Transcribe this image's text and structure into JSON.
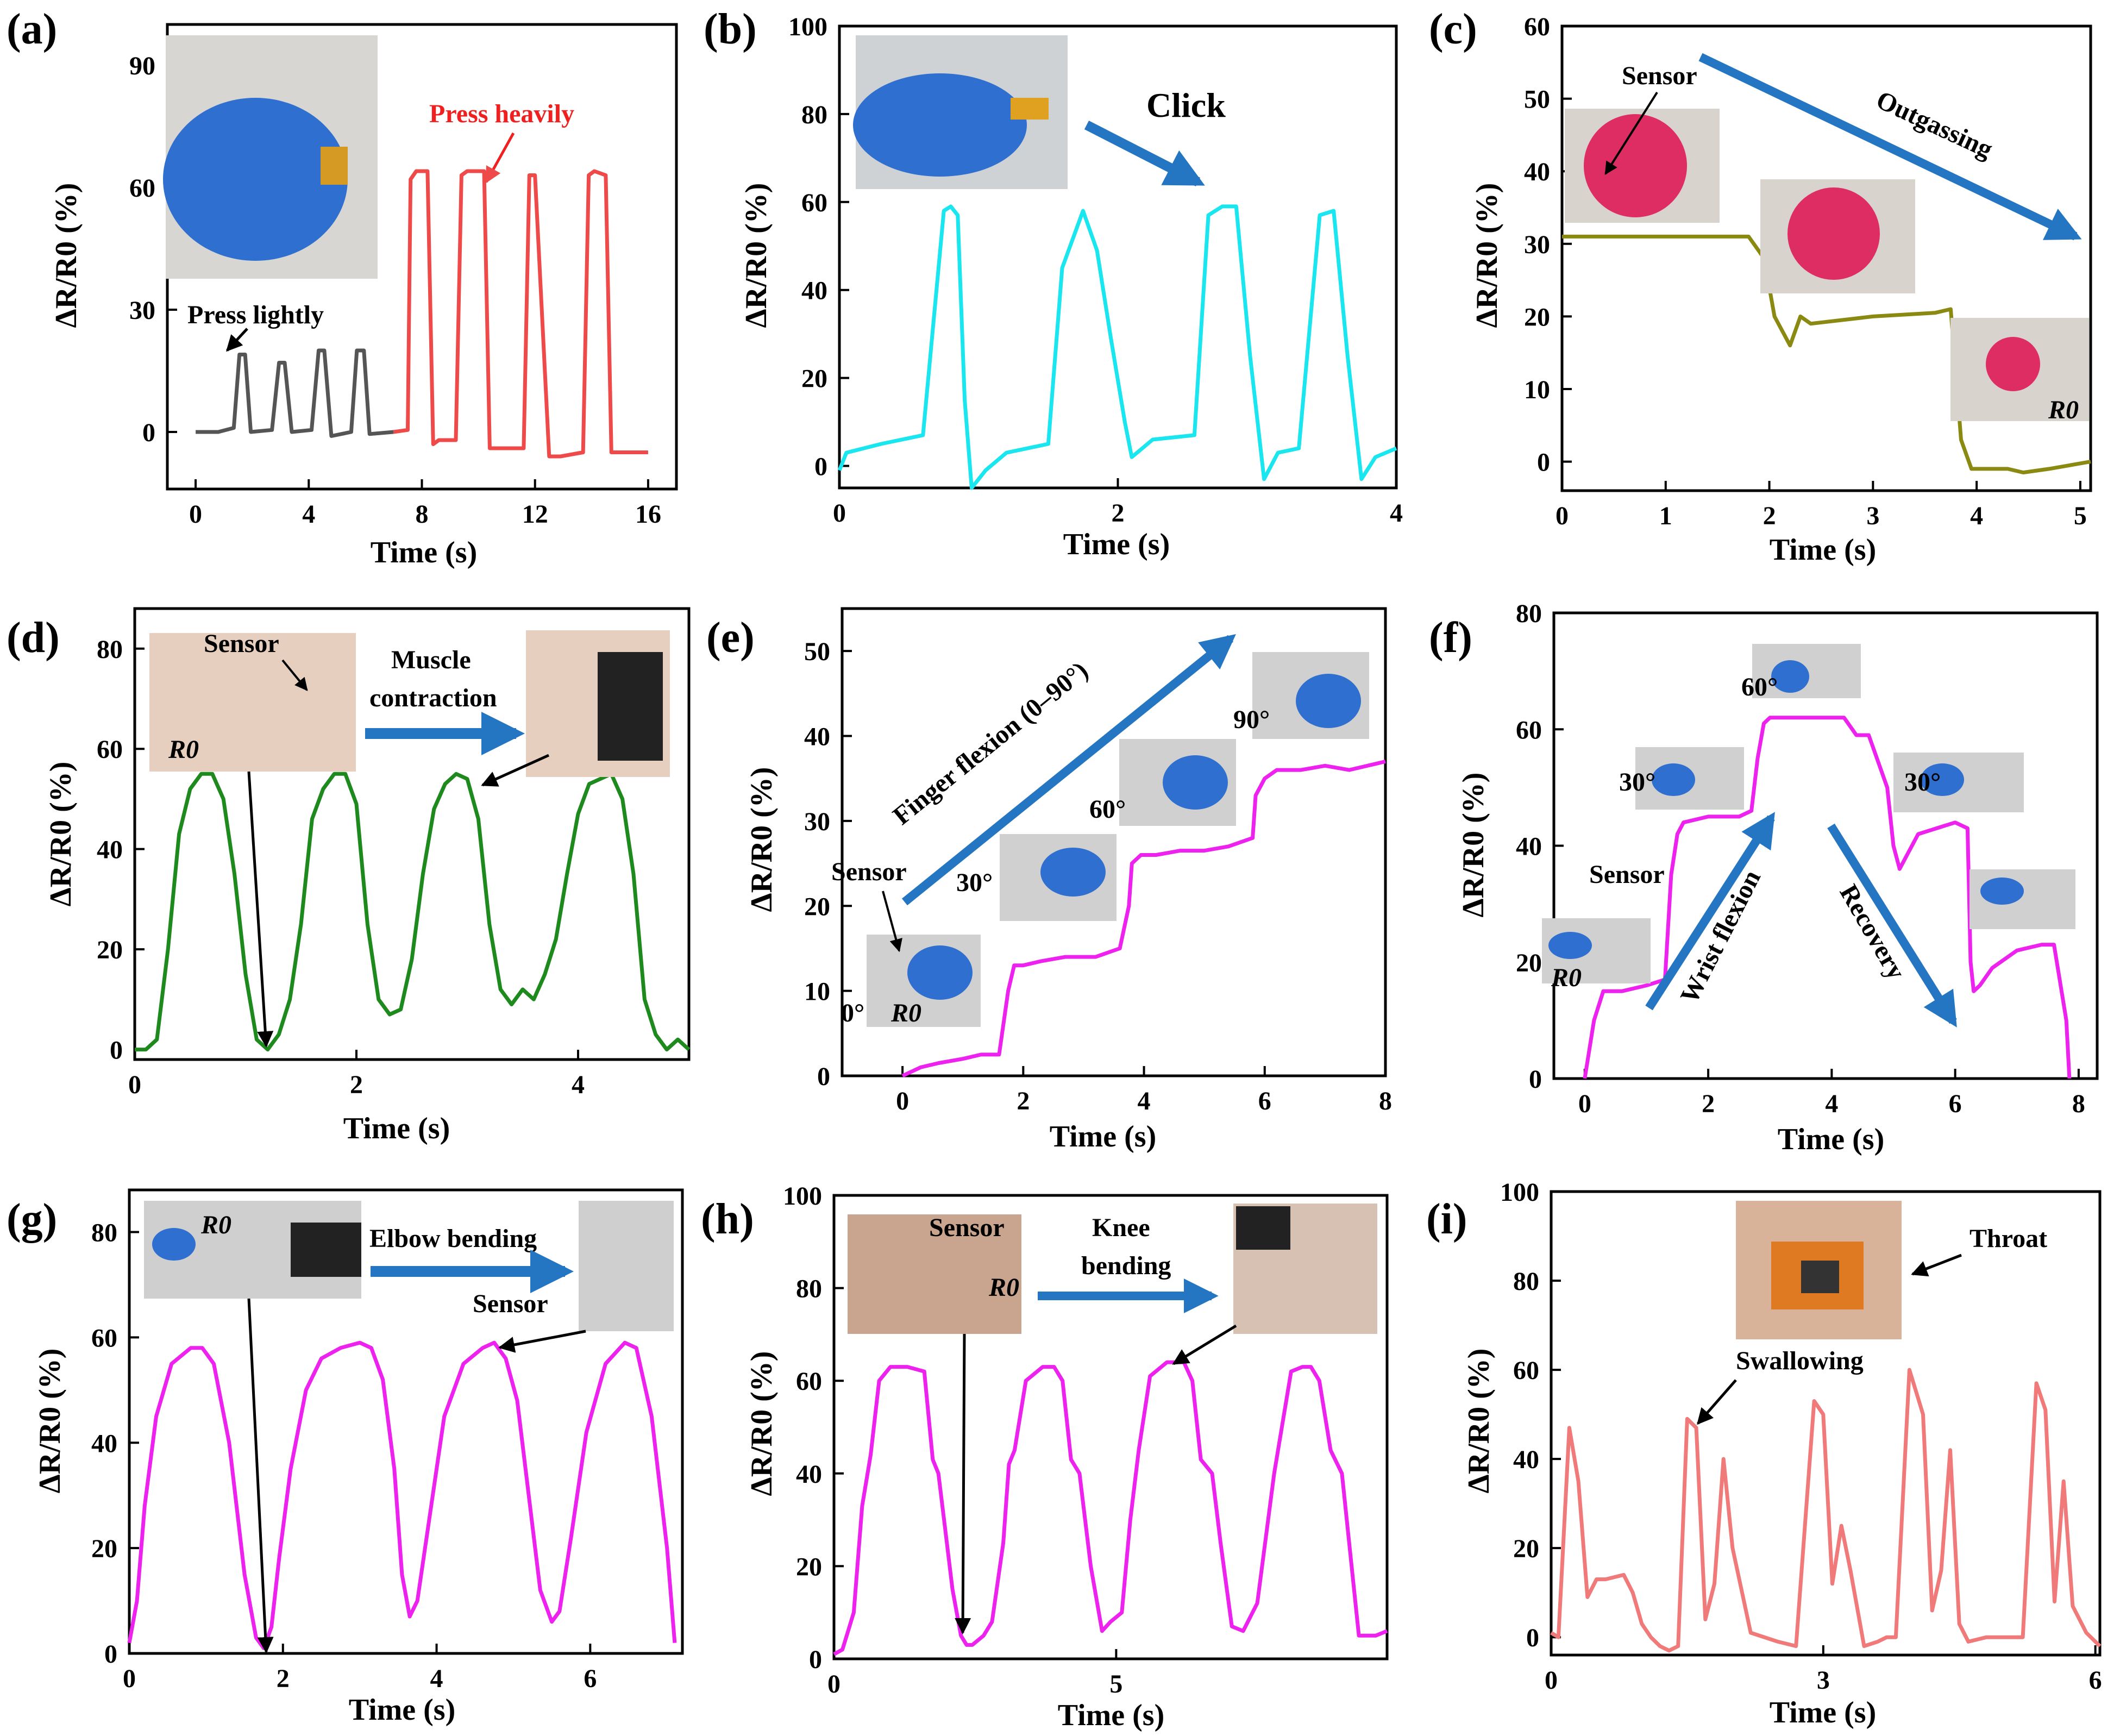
{
  "colors": {
    "gray": "#555555",
    "red": "#ef4a4a",
    "cyan": "#19e6ee",
    "olive": "#8a8a12",
    "green": "#1e8a1e",
    "magenta": "#ee22ee",
    "salmon": "#f07a7a",
    "arrow": "#2476c2"
  },
  "chart_data": [
    {
      "type": "line",
      "label": "(a)",
      "xlabel": "Time (s)",
      "ylabel": "ΔR/R0 (%)",
      "xlim": [
        -1,
        17
      ],
      "ylim": [
        -14,
        100
      ],
      "xticks": [
        0,
        4,
        8,
        12,
        16
      ],
      "yticks": [
        0,
        30,
        60,
        90
      ],
      "series": [
        {
          "color": "#555555",
          "x": [
            0,
            0.8,
            1.35,
            1.55,
            1.75,
            1.95,
            2.7,
            2.95,
            3.15,
            3.4,
            4.1,
            4.35,
            4.55,
            4.8,
            5.5,
            5.7,
            5.95,
            6.15,
            7.0
          ],
          "y": [
            0,
            0,
            1,
            19,
            19,
            0,
            0.5,
            17,
            17,
            0,
            0.5,
            20,
            20,
            -1,
            0,
            20,
            20,
            -0.5,
            0
          ]
        },
        {
          "color": "#ef4a4a",
          "x": [
            7.0,
            7.5,
            7.6,
            7.8,
            8.2,
            8.4,
            8.6,
            9.2,
            9.4,
            9.6,
            10.2,
            10.4,
            10.6,
            11.6,
            11.8,
            12.0,
            12.5,
            12.7,
            12.9,
            13.7,
            13.9,
            14.1,
            14.5,
            14.7,
            15.5,
            16.0
          ],
          "y": [
            0,
            0.5,
            62,
            64,
            64,
            -3,
            -2,
            -2,
            63,
            64,
            64,
            -4,
            -4,
            -4,
            63,
            63,
            -6,
            -6,
            -6,
            -5,
            63,
            64,
            63,
            -5,
            -5,
            -5
          ]
        }
      ],
      "annotations": [
        "Press lightly",
        "Press heavily"
      ]
    },
    {
      "type": "line",
      "label": "(b)",
      "xlabel": "Time (s)",
      "ylabel": "ΔR/R0 (%)",
      "xlim": [
        0,
        4
      ],
      "ylim": [
        -5,
        100
      ],
      "yticks": [
        0,
        20,
        40,
        60,
        80,
        100
      ],
      "xticks": [
        0,
        2,
        4
      ],
      "series": [
        {
          "color": "#19e6ee",
          "x": [
            0,
            0.05,
            0.3,
            0.6,
            0.75,
            0.8,
            0.85,
            0.9,
            0.95,
            1.05,
            1.2,
            1.5,
            1.6,
            1.75,
            1.85,
            1.95,
            2.05,
            2.1,
            2.25,
            2.55,
            2.65,
            2.75,
            2.85,
            2.95,
            3.05,
            3.15,
            3.3,
            3.45,
            3.55,
            3.65,
            3.75,
            3.85,
            4.0
          ],
          "y": [
            -1,
            3,
            5,
            7,
            58,
            59,
            57,
            15,
            -5,
            -1,
            3,
            5,
            45,
            58,
            49,
            29,
            10,
            2,
            6,
            7,
            57,
            59,
            59,
            25,
            -3,
            3,
            4,
            57,
            58,
            25,
            -3,
            2,
            4
          ]
        }
      ],
      "annotations": [
        "Click"
      ]
    },
    {
      "type": "line",
      "label": "(c)",
      "xlabel": "Time (s)",
      "ylabel": "ΔR/R0 (%)",
      "xlim": [
        0,
        5.1
      ],
      "ylim": [
        -4,
        60
      ],
      "xticks": [
        0,
        1,
        2,
        3,
        4,
        5
      ],
      "yticks": [
        0,
        10,
        20,
        30,
        40,
        50,
        60
      ],
      "series": [
        {
          "color": "#8a8a12",
          "x": [
            0,
            1.2,
            1.6,
            1.8,
            1.95,
            2.05,
            2.2,
            2.3,
            2.4,
            3.0,
            3.6,
            3.75,
            3.85,
            3.95,
            4.3,
            4.45,
            4.7,
            5.1
          ],
          "y": [
            31,
            31,
            31,
            31,
            28,
            20,
            16,
            20,
            19,
            20,
            20.5,
            21,
            3,
            -1,
            -1,
            -1.5,
            -1,
            0
          ]
        }
      ],
      "annotations": [
        "Sensor",
        "Outgassing",
        "R0"
      ]
    },
    {
      "type": "line",
      "label": "(d)",
      "xlabel": "Time (s)",
      "ylabel": "ΔR/R0 (%)",
      "xlim": [
        0,
        5
      ],
      "ylim": [
        -2,
        88
      ],
      "xticks": [
        0,
        2,
        4
      ],
      "yticks": [
        0,
        20,
        40,
        60,
        80
      ],
      "series": [
        {
          "color": "#1e8a1e",
          "x": [
            0,
            0.1,
            0.2,
            0.3,
            0.4,
            0.5,
            0.6,
            0.7,
            0.8,
            0.9,
            1.0,
            1.1,
            1.2,
            1.3,
            1.4,
            1.5,
            1.6,
            1.7,
            1.8,
            1.9,
            2.0,
            2.1,
            2.2,
            2.3,
            2.4,
            2.5,
            2.6,
            2.7,
            2.8,
            2.9,
            3.0,
            3.1,
            3.2,
            3.3,
            3.4,
            3.5,
            3.6,
            3.7,
            3.8,
            3.9,
            4.0,
            4.1,
            4.2,
            4.3,
            4.4,
            4.5,
            4.6,
            4.7,
            4.8,
            4.9,
            5.0
          ],
          "y": [
            0,
            0,
            2,
            20,
            43,
            52,
            55,
            55,
            50,
            35,
            15,
            2,
            0,
            3,
            10,
            25,
            46,
            52,
            55,
            55,
            49,
            25,
            10,
            7,
            8,
            18,
            35,
            48,
            53,
            55,
            54,
            46,
            25,
            12,
            9,
            12,
            10,
            15,
            22,
            35,
            47,
            53,
            54,
            55,
            50,
            35,
            10,
            3,
            0,
            2,
            0
          ]
        }
      ],
      "annotations": [
        "Sensor",
        "Muscle contraction",
        "R0"
      ]
    },
    {
      "type": "line",
      "label": "(e)",
      "xlabel": "Time (s)",
      "ylabel": "ΔR/R0 (%)",
      "xlim": [
        -1,
        8
      ],
      "ylim": [
        0,
        55
      ],
      "xticks": [
        0,
        2,
        4,
        6,
        8
      ],
      "yticks": [
        0,
        10,
        20,
        30,
        40,
        50
      ],
      "series": [
        {
          "color": "#ee22ee",
          "x": [
            0,
            0.3,
            0.6,
            1.0,
            1.3,
            1.6,
            1.75,
            1.85,
            2.0,
            2.3,
            2.7,
            3.2,
            3.6,
            3.75,
            3.8,
            3.95,
            4.2,
            4.6,
            5.0,
            5.4,
            5.8,
            5.85,
            6.0,
            6.2,
            6.6,
            7.0,
            7.4,
            8.0
          ],
          "y": [
            0,
            1,
            1.5,
            2,
            2.5,
            2.5,
            10,
            13,
            13,
            13.5,
            14,
            14,
            15,
            20,
            25,
            26,
            26,
            26.5,
            26.5,
            27,
            28,
            33,
            35,
            36,
            36,
            36.5,
            36,
            37
          ]
        }
      ],
      "annotations": [
        "Finger flexion (0–90°)",
        "Sensor",
        "0°",
        "R0",
        "30°",
        "60°",
        "90°"
      ]
    },
    {
      "type": "line",
      "label": "(f)",
      "xlabel": "Time (s)",
      "ylabel": "ΔR/R0 (%)",
      "xlim": [
        -0.5,
        8.3
      ],
      "ylim": [
        0,
        80
      ],
      "xticks": [
        0,
        2,
        4,
        6,
        8
      ],
      "yticks": [
        0,
        20,
        40,
        60,
        80
      ],
      "series": [
        {
          "color": "#ee22ee",
          "x": [
            0,
            0.15,
            0.3,
            0.6,
            1.0,
            1.3,
            1.4,
            1.5,
            1.6,
            2.0,
            2.5,
            2.7,
            2.8,
            2.9,
            3.0,
            3.5,
            4.0,
            4.2,
            4.4,
            4.6,
            4.9,
            5.0,
            5.1,
            5.2,
            5.4,
            5.7,
            6.0,
            6.2,
            6.25,
            6.3,
            6.4,
            6.6,
            7.0,
            7.4,
            7.6,
            7.8,
            7.85
          ],
          "y": [
            0,
            10,
            15,
            15,
            16,
            17,
            35,
            42,
            44,
            45,
            45,
            46,
            55,
            61,
            62,
            62,
            62,
            62,
            59,
            59,
            50,
            40,
            36,
            38,
            42,
            43,
            44,
            43,
            20,
            15,
            16,
            19,
            22,
            23,
            23,
            10,
            0
          ]
        }
      ],
      "annotations": [
        "Sensor",
        "R0",
        "30°",
        "60°",
        "30°",
        "Wrist flexion",
        "Recovery"
      ]
    },
    {
      "type": "line",
      "label": "(g)",
      "xlabel": "Time (s)",
      "ylabel": "ΔR/R0 (%)",
      "xlim": [
        0,
        7.2
      ],
      "ylim": [
        0,
        88
      ],
      "xticks": [
        0,
        2,
        4,
        6
      ],
      "yticks": [
        0,
        20,
        40,
        60,
        80
      ],
      "series": [
        {
          "color": "#ee22ee",
          "x": [
            0,
            0.1,
            0.2,
            0.35,
            0.55,
            0.8,
            0.95,
            1.1,
            1.3,
            1.5,
            1.65,
            1.75,
            1.85,
            1.95,
            2.1,
            2.3,
            2.5,
            2.75,
            3.0,
            3.15,
            3.3,
            3.45,
            3.55,
            3.65,
            3.75,
            3.9,
            4.1,
            4.35,
            4.6,
            4.75,
            4.9,
            5.05,
            5.2,
            5.35,
            5.5,
            5.6,
            5.75,
            5.95,
            6.2,
            6.45,
            6.6,
            6.8,
            7.0,
            7.1
          ],
          "y": [
            2,
            10,
            28,
            45,
            55,
            58,
            58,
            55,
            40,
            15,
            3,
            1,
            5,
            18,
            35,
            50,
            56,
            58,
            59,
            58,
            52,
            35,
            15,
            7,
            10,
            25,
            45,
            55,
            58,
            59,
            56,
            48,
            30,
            12,
            6,
            8,
            22,
            42,
            55,
            59,
            58,
            45,
            20,
            2
          ]
        }
      ],
      "annotations": [
        "R0",
        "Elbow bending",
        "Sensor"
      ]
    },
    {
      "type": "line",
      "label": "(h)",
      "xlabel": "Time (s)",
      "ylabel": "ΔR/R0 (%)",
      "xlim": [
        0,
        9.8
      ],
      "ylim": [
        0,
        100
      ],
      "xticks": [
        0,
        5
      ],
      "yticks": [
        0,
        20,
        40,
        60,
        80,
        100
      ],
      "series": [
        {
          "color": "#ee22ee",
          "x": [
            0,
            0.15,
            0.35,
            0.5,
            0.65,
            0.8,
            1.0,
            1.3,
            1.6,
            1.75,
            1.85,
            1.95,
            2.1,
            2.25,
            2.35,
            2.45,
            2.65,
            2.8,
            3.0,
            3.1,
            3.2,
            3.4,
            3.7,
            3.9,
            4.05,
            4.2,
            4.35,
            4.55,
            4.75,
            4.9,
            5.1,
            5.25,
            5.4,
            5.6,
            5.9,
            6.2,
            6.35,
            6.5,
            6.7,
            6.85,
            7.05,
            7.25,
            7.5,
            7.8,
            8.1,
            8.3,
            8.45,
            8.6,
            8.8,
            9.0,
            9.3,
            9.6,
            9.8
          ],
          "y": [
            1,
            2,
            10,
            33,
            44,
            60,
            63,
            63,
            62,
            43,
            40,
            30,
            15,
            5,
            3,
            3,
            5,
            8,
            25,
            42,
            45,
            60,
            63,
            63,
            60,
            43,
            40,
            20,
            6,
            8,
            10,
            30,
            45,
            61,
            64,
            64,
            60,
            43,
            40,
            25,
            7,
            6,
            12,
            40,
            62,
            63,
            63,
            60,
            45,
            40,
            5,
            5,
            6
          ]
        }
      ],
      "annotations": [
        "Sensor",
        "R0",
        "Knee bending"
      ]
    },
    {
      "type": "line",
      "label": "(i)",
      "xlabel": "Time (s)",
      "ylabel": "ΔR/R0 (%)",
      "xlim": [
        0,
        6.05
      ],
      "ylim": [
        -4,
        100
      ],
      "xticks": [
        0,
        3,
        6
      ],
      "yticks": [
        0,
        20,
        40,
        60,
        80,
        100
      ],
      "series": [
        {
          "color": "#f07a7a",
          "x": [
            0,
            0.08,
            0.2,
            0.3,
            0.4,
            0.5,
            0.6,
            0.8,
            0.9,
            1.0,
            1.1,
            1.2,
            1.3,
            1.4,
            1.5,
            1.6,
            1.7,
            1.8,
            1.9,
            2.0,
            2.2,
            2.5,
            2.7,
            2.9,
            3.0,
            3.1,
            3.2,
            3.3,
            3.45,
            3.6,
            3.7,
            3.8,
            3.95,
            4.1,
            4.2,
            4.3,
            4.4,
            4.5,
            4.6,
            4.8,
            5.0,
            5.2,
            5.35,
            5.45,
            5.55,
            5.65,
            5.75,
            5.9,
            6.05
          ],
          "y": [
            1,
            0,
            47,
            35,
            9,
            13,
            13,
            14,
            10,
            3,
            0,
            -2,
            -3,
            -2,
            49,
            47,
            4,
            12,
            40,
            20,
            1,
            -1,
            -2,
            53,
            50,
            12,
            25,
            15,
            -2,
            -1,
            0,
            0,
            60,
            50,
            6,
            15,
            42,
            3,
            -1,
            0,
            0,
            0,
            57,
            51,
            8,
            35,
            7,
            1,
            -2
          ]
        }
      ],
      "annotations": [
        "Throat",
        "Swallowing"
      ]
    }
  ]
}
